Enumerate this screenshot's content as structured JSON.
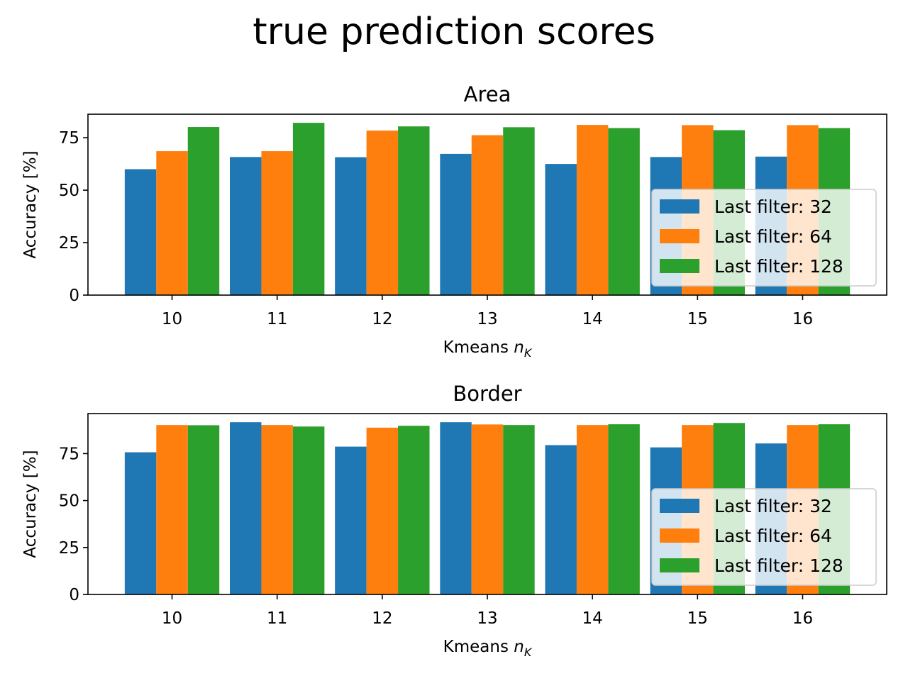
{
  "figure": {
    "title": "true prediction scores"
  },
  "chart_data": [
    {
      "type": "bar",
      "title": "Area",
      "xlabel_prefix": "Kmeans ",
      "xlabel_var": "n",
      "xlabel_sub": "K",
      "ylabel": "Accuracy [%]",
      "categories": [
        "10",
        "11",
        "12",
        "13",
        "14",
        "15",
        "16"
      ],
      "ylim": [
        0,
        86.2
      ],
      "yticks": [
        0,
        25,
        50,
        75
      ],
      "legend_position": "lower right",
      "grid": false,
      "series": [
        {
          "name": "Last filter: 32",
          "color": "#1f77b4",
          "values": [
            60,
            65.8,
            65.7,
            67.3,
            62.5,
            65.8,
            66
          ]
        },
        {
          "name": "Last filter: 64",
          "color": "#ff7f0e",
          "values": [
            68.6,
            68.6,
            78.4,
            76.2,
            81.1,
            81,
            81
          ]
        },
        {
          "name": "Last filter: 128",
          "color": "#2ca02c",
          "values": [
            80.1,
            82.1,
            80.4,
            80,
            79.6,
            78.6,
            79.6
          ]
        }
      ]
    },
    {
      "type": "bar",
      "title": "Border",
      "xlabel_prefix": "Kmeans ",
      "xlabel_var": "n",
      "xlabel_sub": "K",
      "ylabel": "Accuracy [%]",
      "categories": [
        "10",
        "11",
        "12",
        "13",
        "14",
        "15",
        "16"
      ],
      "ylim": [
        0,
        96.3
      ],
      "yticks": [
        0,
        25,
        50,
        75
      ],
      "legend_position": "lower right",
      "grid": false,
      "series": [
        {
          "name": "Last filter: 32",
          "color": "#1f77b4",
          "values": [
            75.7,
            91.7,
            78.7,
            91.7,
            79.5,
            78.3,
            80.4
          ]
        },
        {
          "name": "Last filter: 64",
          "color": "#ff7f0e",
          "values": [
            90.2,
            90.2,
            88.8,
            90.5,
            90.2,
            90.2,
            90.2
          ]
        },
        {
          "name": "Last filter: 128",
          "color": "#2ca02c",
          "values": [
            90.1,
            89.4,
            89.8,
            90.2,
            90.6,
            91.3,
            90.6
          ]
        }
      ]
    }
  ]
}
